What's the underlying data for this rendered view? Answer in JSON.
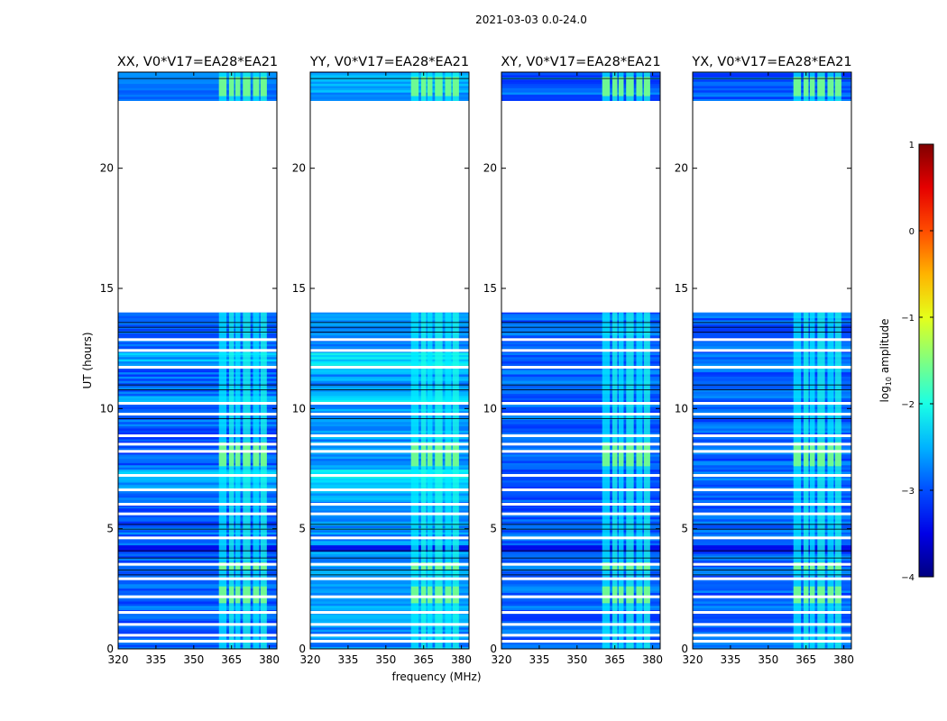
{
  "chart_data": {
    "type": "heatmap",
    "suptitle": "2021-03-03 0.0-24.0",
    "xlabel": "frequency (MHz)",
    "ylabel": "UT (hours)",
    "xlim": [
      320,
      383
    ],
    "ylim": [
      0,
      24
    ],
    "xticks": [
      320,
      335,
      350,
      365,
      380
    ],
    "yticks": [
      0,
      5,
      10,
      15,
      20
    ],
    "panels": [
      {
        "title": "XX, V0*V17=EA28*EA21",
        "variant": 0
      },
      {
        "title": "YY, V0*V17=EA28*EA21",
        "variant": 1
      },
      {
        "title": "XY, V0*V17=EA28*EA21",
        "variant": 2
      },
      {
        "title": "YX, V0*V17=EA28*EA21",
        "variant": 3
      }
    ],
    "data_segments_hours": [
      [
        0,
        14.0
      ],
      [
        22.8,
        24.0
      ]
    ],
    "gap_hours": [
      [
        14.0,
        22.8
      ]
    ],
    "rfi_band_mhz": [
      [
        360,
        363
      ],
      [
        364,
        366
      ],
      [
        366.5,
        368.5
      ],
      [
        369.5,
        372.5
      ],
      [
        373.5,
        376
      ],
      [
        376.5,
        379
      ]
    ],
    "bright_intervals_hours": [
      [
        7.6,
        8.6
      ],
      [
        1.9,
        2.6
      ],
      [
        3.3,
        3.6
      ],
      [
        23.0,
        23.8
      ]
    ],
    "colorbar": {
      "label": "log",
      "label_sub": "10",
      "label_rest": " amplitude",
      "vmin": -4,
      "vmax": 1,
      "ticks": [
        "1",
        "0",
        "−1",
        "−2",
        "−3",
        "−4"
      ],
      "tick_values": [
        1,
        0,
        -1,
        -2,
        -3,
        -4
      ],
      "colormap": "jet"
    }
  }
}
